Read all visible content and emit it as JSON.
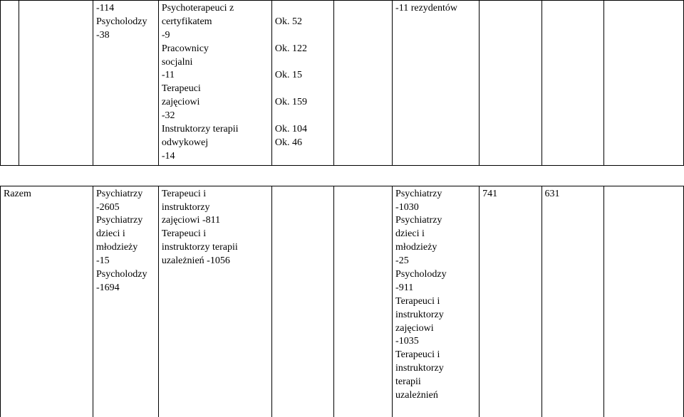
{
  "row1": {
    "c2": "-114\nPsycholodzy\n-38",
    "c3": "Psychoterapeuci z\ncertyfikatem\n-9\nPracownicy\nsocjalni\n-11\nTerapeuci\nzajęciowi\n-32\nInstruktorzy terapii\nodwykowej\n-14",
    "c4": "\nOk. 52\n\nOk. 122\n\nOk. 15\n\nOk. 159\n\nOk. 104\nOk. 46",
    "c6": "-11 rezydentów"
  },
  "row2": {
    "c0": "Razem",
    "c2": "Psychiatrzy\n-2605\nPsychiatrzy\ndzieci i\nmłodzieży\n-15\nPsycholodzy\n-1694",
    "c3": "Terapeuci i\ninstruktorzy\nzajęciowi -811\nTerapeuci i\ninstruktorzy terapii\nuzależnień -1056",
    "c6": "Psychiatrzy\n-1030\nPsychiatrzy\ndzieci i\nmłodzieży\n-25\nPsycholodzy\n-911\nTerapeuci i\ninstruktorzy\nzajęciowi\n-1035\nTerapeuci i\ninstruktorzy\nterapii\nuzależnień",
    "c7": "741",
    "c8": "631"
  }
}
